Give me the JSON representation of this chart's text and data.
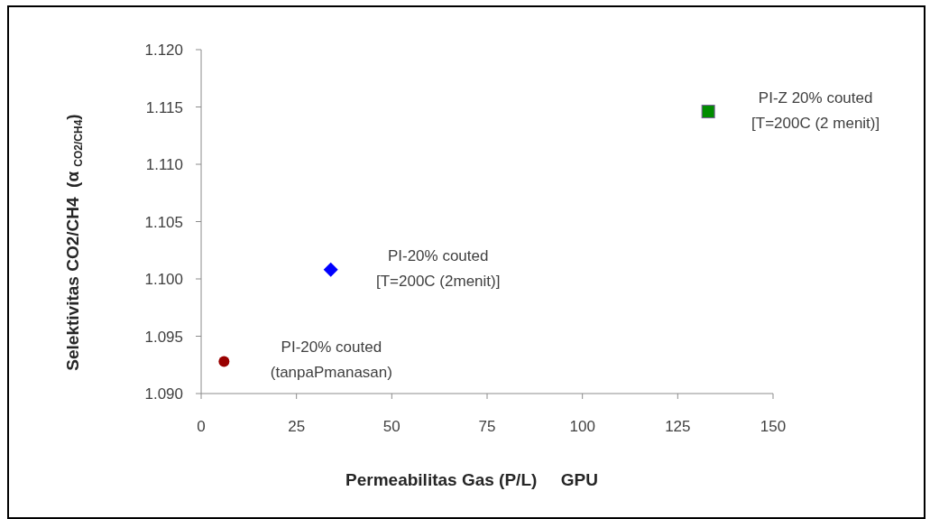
{
  "chart_data": {
    "type": "scatter",
    "xlabel": "Permeabilitas Gas (P/L)     GPU",
    "ylabel": "Selektivitas CO2/CH4  (α $_{CO2/CH4}$)",
    "xlim": [
      0,
      150
    ],
    "xticks": [
      0,
      25,
      50,
      75,
      100,
      125,
      150
    ],
    "ylim": [
      1.09,
      1.12
    ],
    "yticks": [
      {
        "value": 1.09,
        "label": "1.090"
      },
      {
        "value": 1.095,
        "label": "1.095"
      },
      {
        "value": 1.1,
        "label": "1.100"
      },
      {
        "value": 1.105,
        "label": "1.105"
      },
      {
        "value": 1.11,
        "label": "1.110"
      },
      {
        "value": 1.115,
        "label": "1.115"
      },
      {
        "value": 1.12,
        "label": "1.120"
      }
    ],
    "series": [
      {
        "name": "PI-20% couted\n(tanpaPmanasan)",
        "color": "#990000",
        "marker": "circle",
        "x": [
          6
        ],
        "values": [
          1.0928
        ]
      },
      {
        "name": "PI-20% couted\n[T=200C (2menit)]",
        "color": "#0000ff",
        "marker": "diamond",
        "x": [
          34
        ],
        "values": [
          1.1008
        ]
      },
      {
        "name": "PI-Z 20% couted\n[T=200C (2 menit)]",
        "color": "#008c00",
        "marker": "square",
        "x": [
          133
        ],
        "values": [
          1.1146
        ]
      }
    ]
  }
}
